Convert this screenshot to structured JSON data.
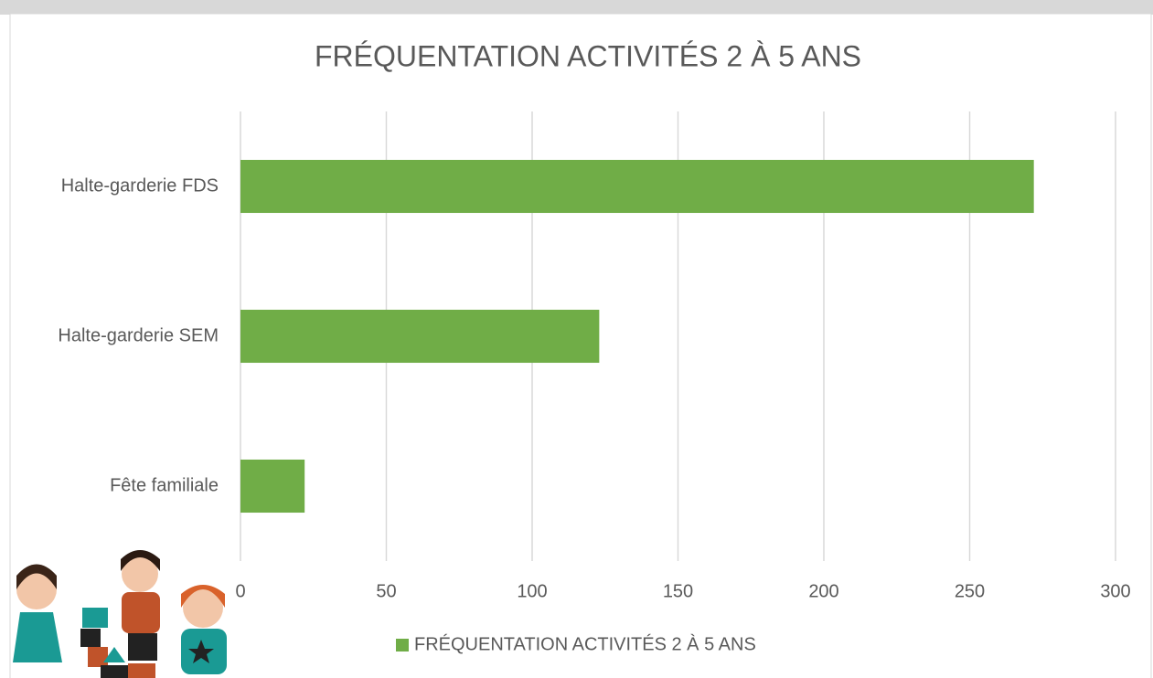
{
  "chart_data": {
    "type": "bar",
    "orientation": "horizontal",
    "title": "FRÉQUENTATION ACTIVITÉS 2 À 5 ANS",
    "categories": [
      "Halte-garderie FDS",
      "Halte-garderie SEM",
      "Fête familiale"
    ],
    "series": [
      {
        "name": "FRÉQUENTATION ACTIVITÉS 2 À 5 ANS",
        "color": "#70ad47",
        "values": [
          272,
          123,
          22
        ]
      }
    ],
    "xlim": [
      0,
      300
    ],
    "xticks": [
      0,
      50,
      100,
      150,
      200,
      250,
      300
    ],
    "grid": true,
    "legend": "bottom"
  }
}
